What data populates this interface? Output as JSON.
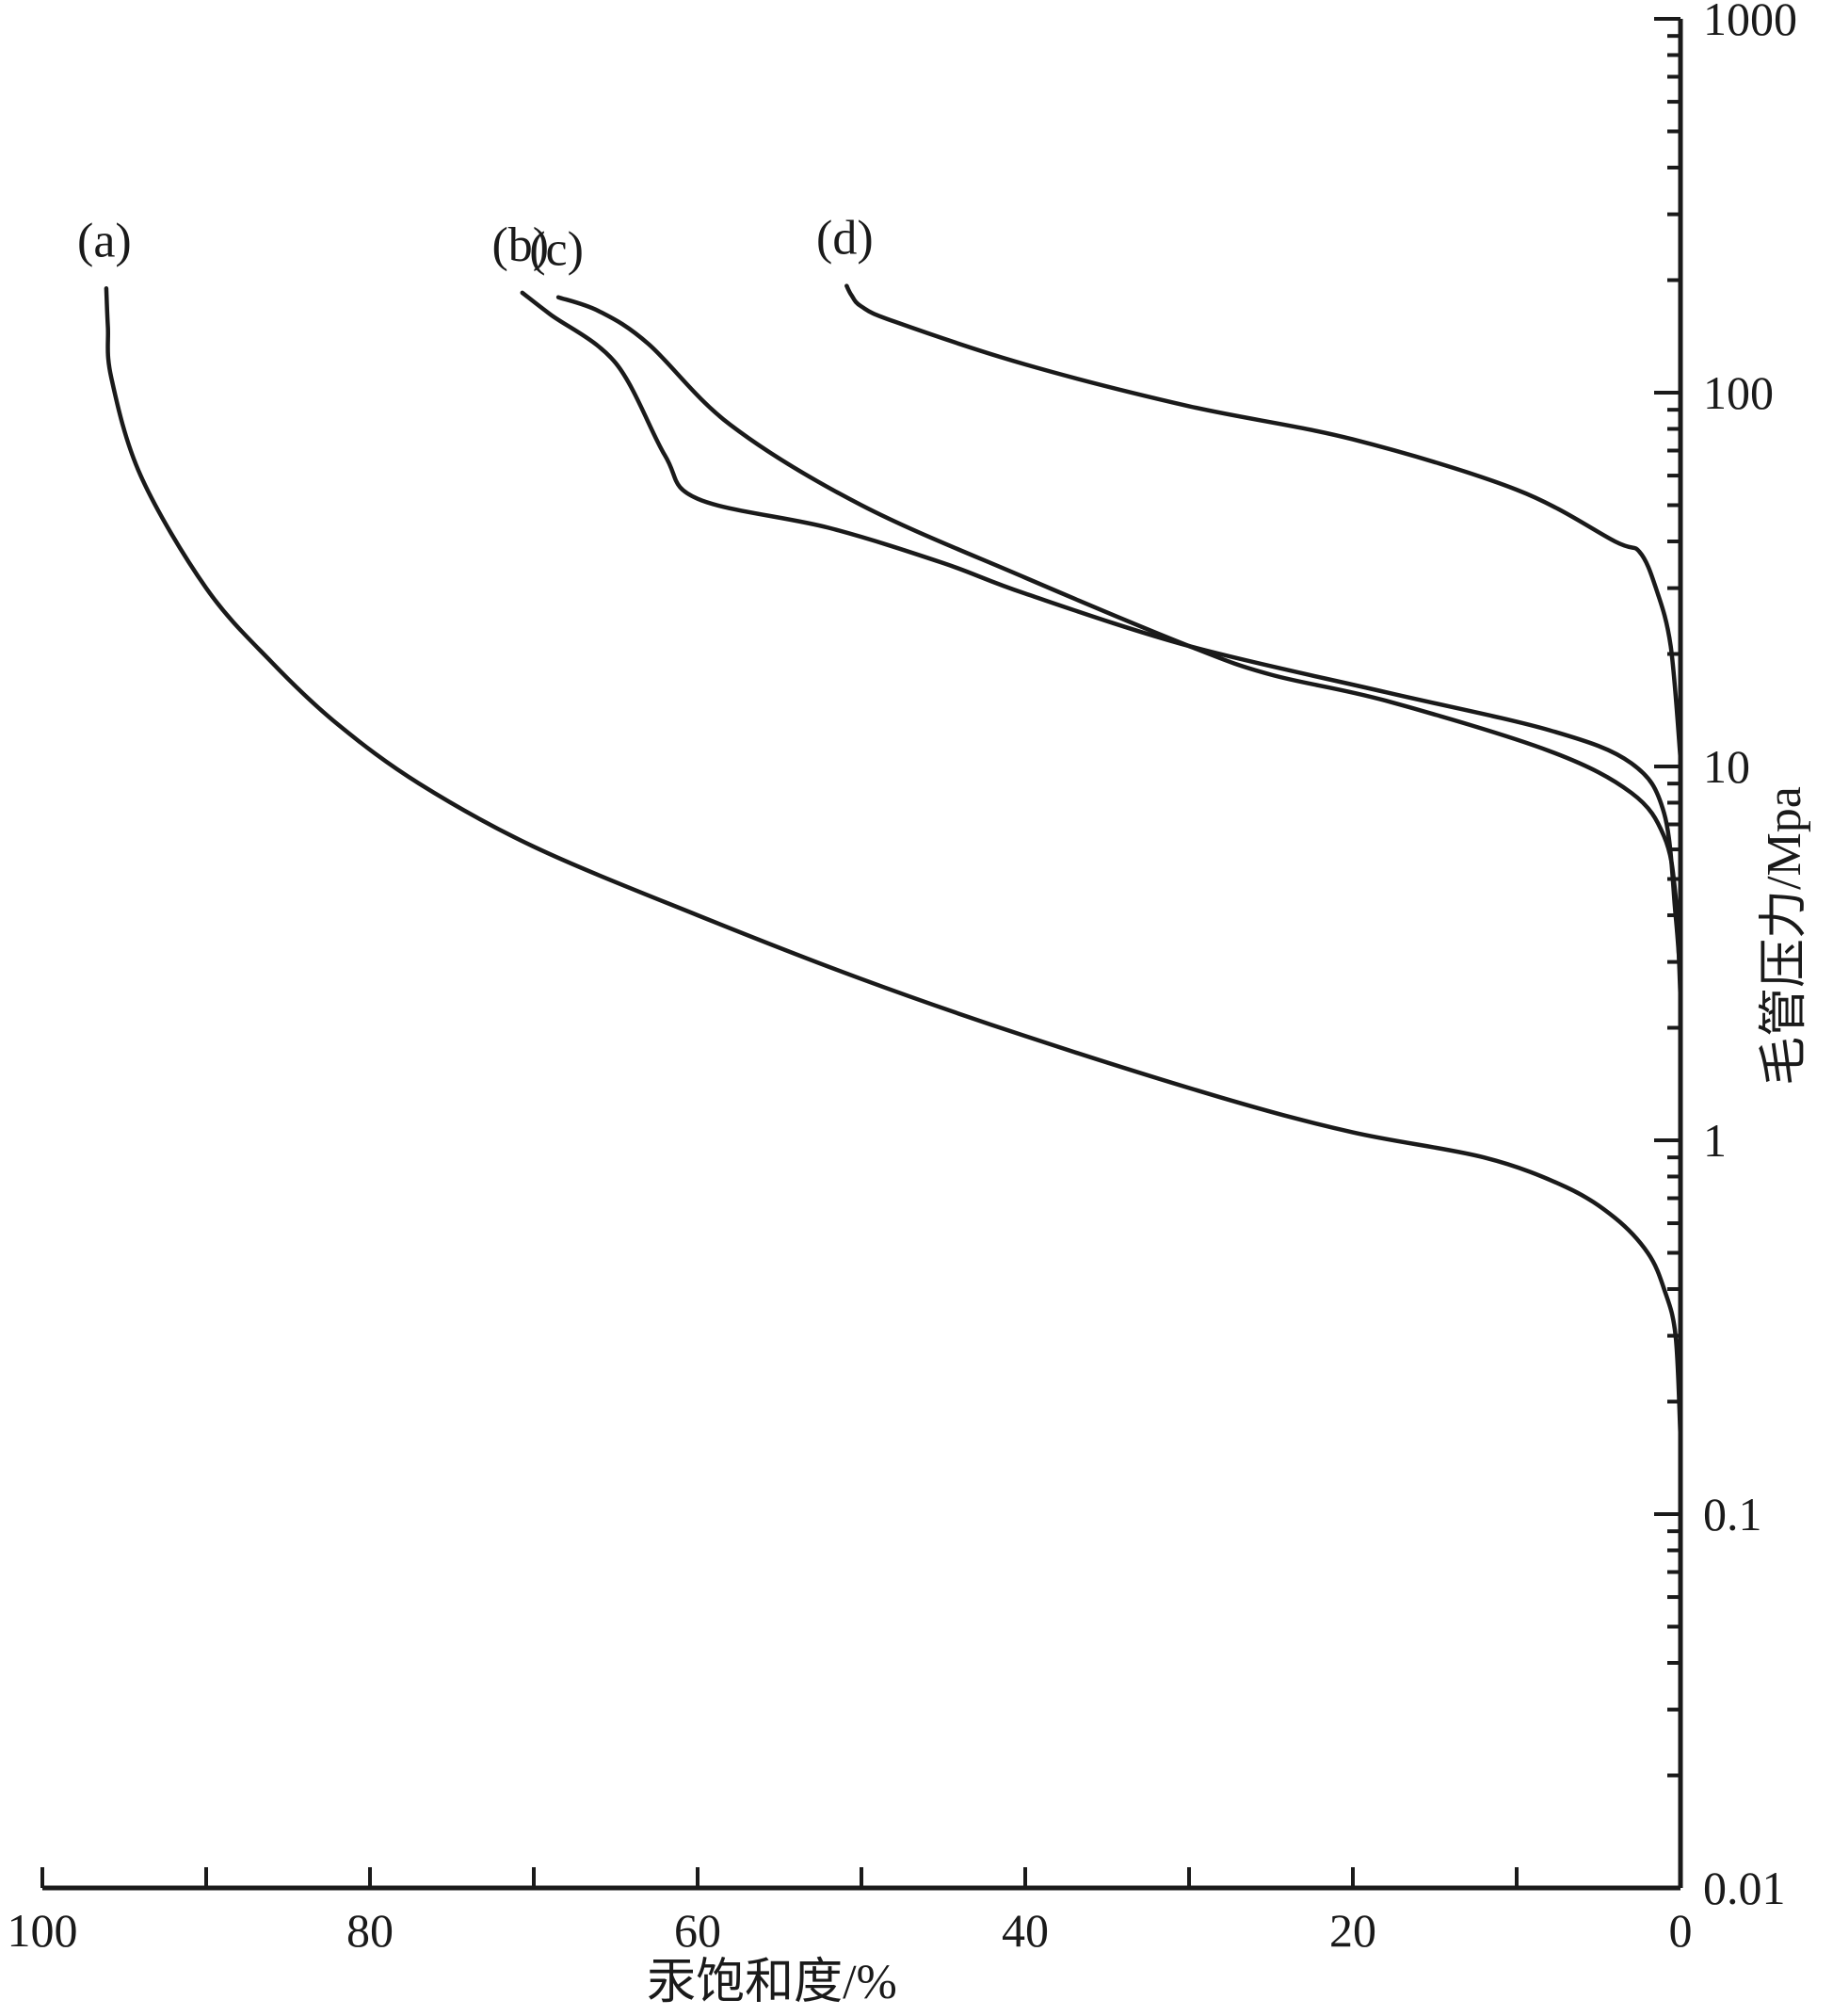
{
  "chart_data": {
    "type": "line",
    "title": "",
    "xlabel": "汞饱和度/%",
    "ylabel": "毛管压力/Mpa",
    "x_axis": {
      "min": 0,
      "max": 100,
      "reversed": true,
      "position": "bottom"
    },
    "y_axis": {
      "min": 0.01,
      "max": 1000,
      "scale": "log",
      "position": "right"
    },
    "x_ticks": [
      {
        "value": 100,
        "label": "100"
      },
      {
        "value": 80,
        "label": "80"
      },
      {
        "value": 60,
        "label": "60"
      },
      {
        "value": 40,
        "label": "40"
      },
      {
        "value": 20,
        "label": "20"
      },
      {
        "value": 0,
        "label": "0"
      }
    ],
    "x_minor_ticks": [
      90,
      70,
      50,
      30,
      10
    ],
    "y_ticks": [
      {
        "value": 1000,
        "label": "1000"
      },
      {
        "value": 100,
        "label": "100"
      },
      {
        "value": 10,
        "label": "10"
      },
      {
        "value": 1,
        "label": "1"
      },
      {
        "value": 0.1,
        "label": "0.1"
      },
      {
        "value": 0.01,
        "label": "0.01"
      }
    ],
    "grid": false,
    "legend": "none",
    "series": [
      {
        "name": "(a)",
        "points": [
          [
            0,
            0.16
          ],
          [
            0.3,
            0.3
          ],
          [
            1,
            0.4
          ],
          [
            2,
            0.5
          ],
          [
            4,
            0.62
          ],
          [
            7,
            0.75
          ],
          [
            12,
            0.9
          ],
          [
            20,
            1.05
          ],
          [
            28,
            1.3
          ],
          [
            40,
            1.9
          ],
          [
            50,
            2.7
          ],
          [
            60,
            4.0
          ],
          [
            70,
            6.1
          ],
          [
            77,
            9.0
          ],
          [
            82,
            13
          ],
          [
            86,
            19
          ],
          [
            90,
            30
          ],
          [
            94,
            60
          ],
          [
            95.8,
            110
          ],
          [
            96,
            150
          ],
          [
            96.1,
            190
          ]
        ]
      },
      {
        "name": "(b)",
        "points": [
          [
            0,
            2.7
          ],
          [
            0.3,
            4.0
          ],
          [
            1,
            7.5
          ],
          [
            3,
            10.2
          ],
          [
            8,
            12.5
          ],
          [
            18,
            15.8
          ],
          [
            30,
            21.0
          ],
          [
            40,
            29.0
          ],
          [
            45,
            35.0
          ],
          [
            52,
            43.5
          ],
          [
            60,
            52.0
          ],
          [
            62,
            68.0
          ],
          [
            65,
            120.0
          ],
          [
            69,
            162.0
          ],
          [
            70.7,
            185.0
          ]
        ]
      },
      {
        "name": "(c)",
        "points": [
          [
            0,
            2.4
          ],
          [
            0.3,
            4.5
          ],
          [
            1,
            6.5
          ],
          [
            3,
            8.5
          ],
          [
            8,
            11.0
          ],
          [
            18,
            15.0
          ],
          [
            25,
            17.6
          ],
          [
            30,
            21.0
          ],
          [
            40,
            32.0
          ],
          [
            50,
            50.0
          ],
          [
            58,
            82.0
          ],
          [
            63,
            135.0
          ],
          [
            66,
            165.0
          ],
          [
            68.5,
            180.0
          ]
        ]
      },
      {
        "name": "(d)",
        "points": [
          [
            0,
            10.5
          ],
          [
            0.6,
            21.0
          ],
          [
            1.5,
            30.0
          ],
          [
            2.5,
            37.5
          ],
          [
            4,
            40.0
          ],
          [
            10,
            55.0
          ],
          [
            20,
            75.0
          ],
          [
            30,
            92.0
          ],
          [
            40,
            119.0
          ],
          [
            48,
            155.0
          ],
          [
            50,
            170.0
          ],
          [
            50.6,
            182.0
          ],
          [
            50.9,
            193.0
          ]
        ]
      }
    ]
  }
}
